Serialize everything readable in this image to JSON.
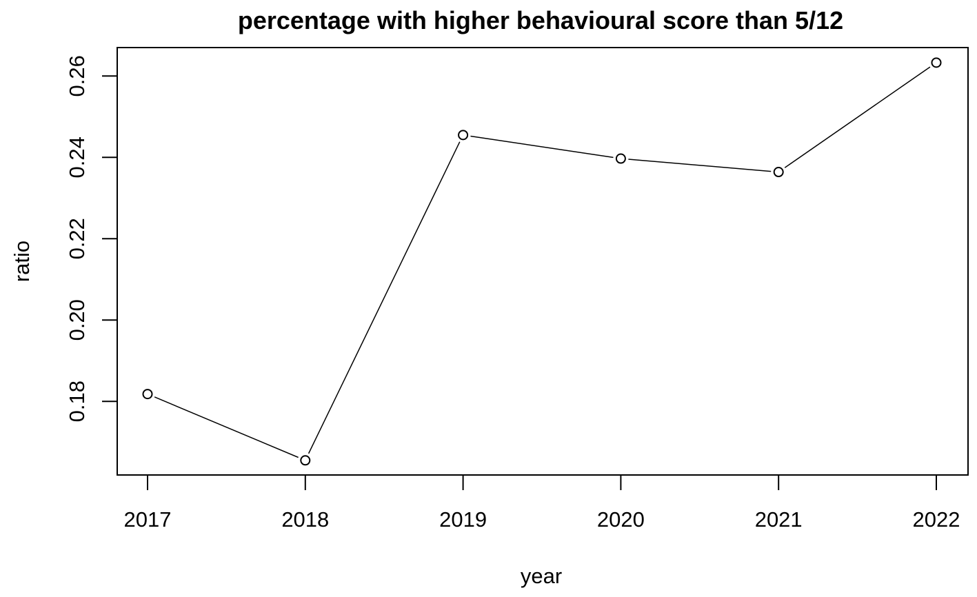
{
  "chart_data": {
    "type": "line",
    "title": "percentage with higher behavioural score than 5/12",
    "xlabel": "year",
    "ylabel": "ratio",
    "x": [
      2017,
      2018,
      2019,
      2020,
      2021,
      2022
    ],
    "x_tick_labels": [
      "2017",
      "2018",
      "2019",
      "2020",
      "2021",
      "2022"
    ],
    "y": [
      0.1818,
      0.1655,
      0.2455,
      0.2397,
      0.2364,
      0.2633
    ],
    "y_ticks": [
      0.18,
      0.2,
      0.22,
      0.24,
      0.26
    ],
    "y_tick_labels": [
      "0.18",
      "0.20",
      "0.22",
      "0.24",
      "0.26"
    ],
    "ylim": [
      0.1619,
      0.267
    ],
    "grid": false,
    "legend": "none",
    "markers": "open-circle",
    "line_color": "#000000"
  }
}
